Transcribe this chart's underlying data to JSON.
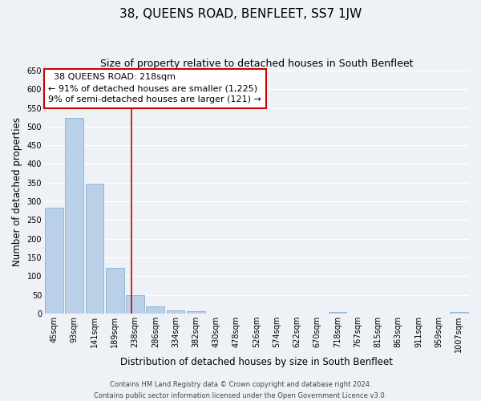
{
  "title": "38, QUEENS ROAD, BENFLEET, SS7 1JW",
  "subtitle": "Size of property relative to detached houses in South Benfleet",
  "xlabel": "Distribution of detached houses by size in South Benfleet",
  "ylabel": "Number of detached properties",
  "footer_line1": "Contains HM Land Registry data © Crown copyright and database right 2024.",
  "footer_line2": "Contains public sector information licensed under the Open Government Licence v3.0.",
  "bar_labels": [
    "45sqm",
    "93sqm",
    "141sqm",
    "189sqm",
    "238sqm",
    "286sqm",
    "334sqm",
    "382sqm",
    "430sqm",
    "478sqm",
    "526sqm",
    "574sqm",
    "622sqm",
    "670sqm",
    "718sqm",
    "767sqm",
    "815sqm",
    "863sqm",
    "911sqm",
    "959sqm",
    "1007sqm"
  ],
  "bar_values": [
    283,
    524,
    347,
    122,
    49,
    19,
    8,
    5,
    0,
    0,
    0,
    0,
    0,
    0,
    4,
    0,
    0,
    0,
    0,
    0,
    4
  ],
  "bar_color": "#bad0e8",
  "bar_edge_color": "#8aafd0",
  "ylim": [
    0,
    650
  ],
  "yticks": [
    0,
    50,
    100,
    150,
    200,
    250,
    300,
    350,
    400,
    450,
    500,
    550,
    600,
    650
  ],
  "annotation_title": "38 QUEENS ROAD: 218sqm",
  "annotation_line1": "← 91% of detached houses are smaller (1,225)",
  "annotation_line2": "9% of semi-detached houses are larger (121) →",
  "annotation_box_color": "#ffffff",
  "annotation_box_edge_color": "#cc0000",
  "vline_color": "#cc0000",
  "background_color": "#eef2f7",
  "grid_color": "#ffffff",
  "title_fontsize": 11,
  "subtitle_fontsize": 9,
  "axis_label_fontsize": 8.5,
  "tick_fontsize": 7,
  "annotation_fontsize": 8,
  "footer_fontsize": 6
}
